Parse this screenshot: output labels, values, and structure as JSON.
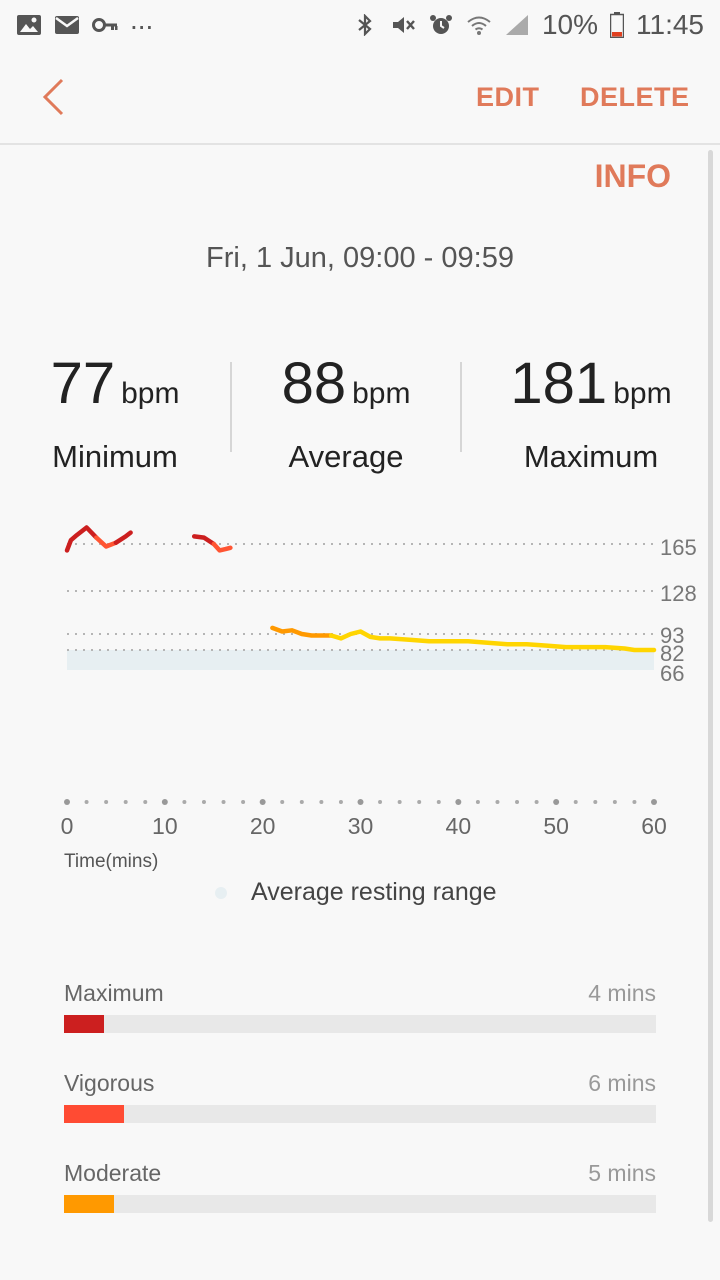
{
  "status_bar": {
    "battery": "10%",
    "time": "11:45",
    "more_indicator": "...",
    "left_icons": [
      "image-icon",
      "mail-icon",
      "key-icon"
    ],
    "right_icons": [
      "bluetooth-icon",
      "mute-icon",
      "alarm-icon",
      "wifi-icon",
      "signal-icon",
      "battery-icon"
    ]
  },
  "toolbar": {
    "edit_label": "EDIT",
    "delete_label": "DELETE",
    "accent_color": "#e07a5a"
  },
  "info_label": "INFO",
  "date_range": "Fri, 1 Jun, 09:00 - 09:59",
  "stats": {
    "minimum": {
      "value": "77",
      "unit": "bpm",
      "label": "Minimum"
    },
    "average": {
      "value": "88",
      "unit": "bpm",
      "label": "Average"
    },
    "maximum": {
      "value": "181",
      "unit": "bpm",
      "label": "Maximum"
    }
  },
  "chart_data": {
    "type": "line",
    "xlabel": "Time(mins)",
    "x_ticks": [
      "0",
      "10",
      "20",
      "30",
      "40",
      "50",
      "60"
    ],
    "y_ticks": [
      "165",
      "128",
      "93",
      "82",
      "66"
    ],
    "xlim": [
      0,
      60
    ],
    "resting_range": [
      66,
      82
    ],
    "legend": "Average resting range",
    "legend_color": "#e7eff2",
    "series": [
      {
        "color": "#cc1f1f",
        "points": [
          [
            0,
            160
          ],
          [
            0.4,
            168
          ],
          [
            1,
            172
          ],
          [
            2,
            178
          ],
          [
            3,
            170
          ]
        ]
      },
      {
        "color": "#ff5533",
        "points": [
          [
            3,
            170
          ],
          [
            4,
            163
          ],
          [
            5,
            166
          ]
        ]
      },
      {
        "color": "#cc1f1f",
        "points": [
          [
            5,
            166
          ],
          [
            6,
            171
          ],
          [
            6.5,
            174
          ]
        ]
      },
      {
        "color": "#cc1f1f",
        "points": [
          [
            13,
            171
          ],
          [
            14,
            170
          ],
          [
            15,
            165
          ]
        ]
      },
      {
        "color": "#ff5533",
        "points": [
          [
            15,
            165
          ],
          [
            15.6,
            160
          ],
          [
            16.2,
            161
          ],
          [
            16.7,
            162
          ]
        ]
      },
      {
        "color": "#ff9900",
        "points": [
          [
            21,
            98
          ],
          [
            22,
            95
          ],
          [
            23,
            96
          ],
          [
            24,
            93
          ],
          [
            25,
            92
          ],
          [
            26,
            92
          ],
          [
            27,
            92
          ]
        ]
      },
      {
        "color": "#ffd500",
        "points": [
          [
            27,
            92
          ],
          [
            28,
            90
          ],
          [
            29,
            93
          ],
          [
            30,
            95
          ],
          [
            31,
            91
          ],
          [
            32,
            90
          ],
          [
            33,
            90
          ],
          [
            35,
            89
          ],
          [
            37,
            88
          ],
          [
            39,
            88
          ],
          [
            41,
            88
          ],
          [
            43,
            87
          ],
          [
            45,
            86
          ],
          [
            47,
            86
          ],
          [
            49,
            85
          ],
          [
            51,
            84
          ],
          [
            53,
            84
          ],
          [
            55,
            84
          ],
          [
            57,
            83
          ],
          [
            58,
            82
          ],
          [
            59,
            82
          ],
          [
            60,
            82
          ]
        ]
      }
    ]
  },
  "zones": [
    {
      "label": "Maximum",
      "value": "4 mins",
      "fraction": 0.068,
      "color": "#cc1f1f"
    },
    {
      "label": "Vigorous",
      "value": "6 mins",
      "fraction": 0.102,
      "color": "#ff4b33"
    },
    {
      "label": "Moderate",
      "value": "5 mins",
      "fraction": 0.085,
      "color": "#ff9900"
    }
  ]
}
